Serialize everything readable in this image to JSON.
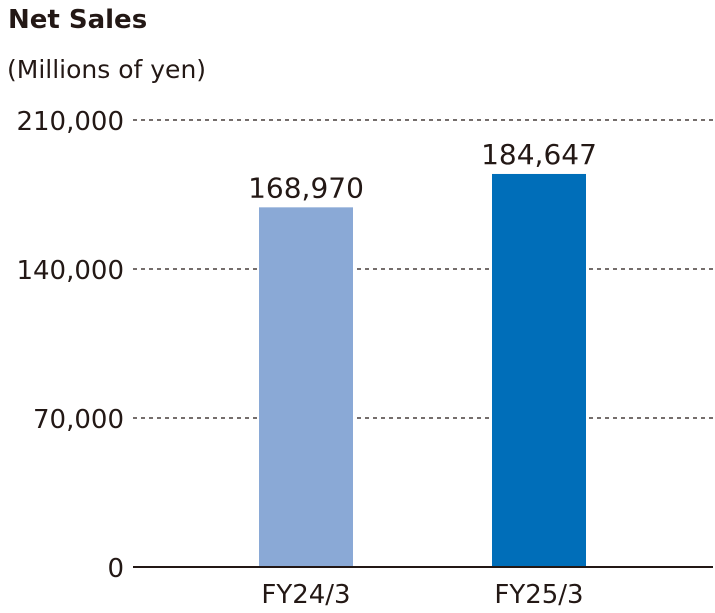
{
  "chart_data": {
    "type": "bar",
    "title": "Net Sales",
    "unit_label": "(Millions of yen)",
    "categories": [
      "FY24/3",
      "FY25/3"
    ],
    "values": [
      168970,
      184647
    ],
    "data_labels": [
      "168,970",
      "184,647"
    ],
    "bar_colors": [
      "#8aa9d6",
      "#006eb9"
    ],
    "ylim": [
      0,
      210000
    ],
    "yticks": [
      0,
      70000,
      140000,
      210000
    ],
    "ytick_labels": [
      "0",
      "70,000",
      "140,000",
      "210,000"
    ],
    "grid": true,
    "xlabel": "",
    "ylabel": ""
  }
}
